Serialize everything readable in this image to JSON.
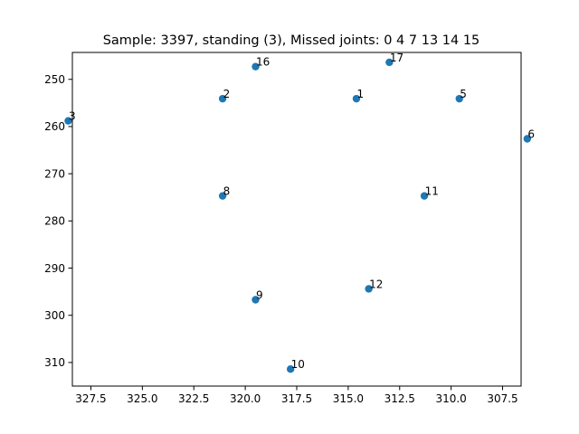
{
  "chart_data": {
    "type": "scatter",
    "title": "Sample: 3397, standing (3), Missed joints: 0  4  7  13  14  15",
    "xlabel": "",
    "ylabel": "",
    "x_inverted": true,
    "y_inverted": true,
    "xlim": [
      328.4,
      306.6
    ],
    "ylim": [
      244.3,
      315.0
    ],
    "xticks": [
      327.5,
      325.0,
      322.5,
      320.0,
      317.5,
      315.0,
      312.5,
      310.0,
      307.5
    ],
    "xtick_labels": [
      "327.5",
      "325.0",
      "322.5",
      "320.0",
      "317.5",
      "315.0",
      "312.5",
      "310.0",
      "307.5"
    ],
    "yticks": [
      250,
      260,
      270,
      280,
      290,
      300,
      310
    ],
    "ytick_labels": [
      "250",
      "260",
      "270",
      "280",
      "290",
      "300",
      "310"
    ],
    "grid": false,
    "points": [
      {
        "label": "1",
        "x": 314.6,
        "y": 254.1
      },
      {
        "label": "2",
        "x": 321.1,
        "y": 254.1
      },
      {
        "label": "3",
        "x": 328.6,
        "y": 258.8
      },
      {
        "label": "5",
        "x": 309.6,
        "y": 254.1
      },
      {
        "label": "6",
        "x": 306.3,
        "y": 262.6
      },
      {
        "label": "8",
        "x": 321.1,
        "y": 274.7
      },
      {
        "label": "9",
        "x": 319.5,
        "y": 296.7
      },
      {
        "label": "10",
        "x": 317.8,
        "y": 311.4
      },
      {
        "label": "11",
        "x": 311.3,
        "y": 274.7
      },
      {
        "label": "12",
        "x": 314.0,
        "y": 294.4
      },
      {
        "label": "16",
        "x": 319.5,
        "y": 247.3
      },
      {
        "label": "17",
        "x": 313.0,
        "y": 246.4
      }
    ]
  }
}
